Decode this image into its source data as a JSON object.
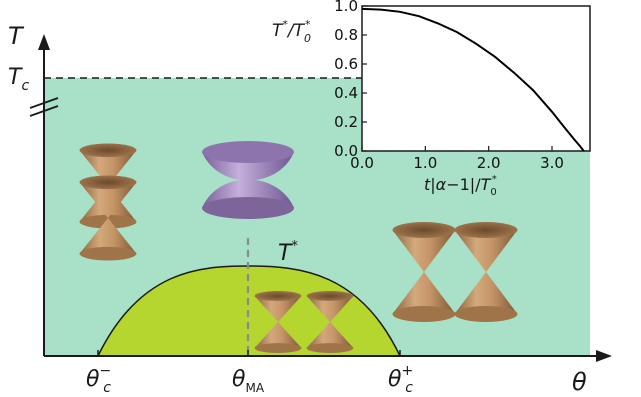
{
  "phase_diagram": {
    "y_axis_label": "T",
    "x_axis_label": "θ",
    "critical_temperature": {
      "base": "T",
      "sub": "c"
    },
    "dome_label": {
      "base": "T",
      "sup": "*"
    },
    "x_ticks": [
      {
        "base": "θ",
        "sub": "c",
        "sup": "−"
      },
      {
        "base": "θ",
        "sub": "MA",
        "sup": ""
      },
      {
        "base": "θ",
        "sub": "c",
        "sup": "+"
      }
    ],
    "colors": {
      "background_region": "#a8e0c8",
      "dome": "#b5d62e",
      "cone": "#b98a5a",
      "gapped_cone": "#a58cbf",
      "axis": "#1a1a1a"
    }
  },
  "inset": {
    "y_label": {
      "n1": "T",
      "sup1": "*",
      "slash": "/",
      "n2": "T",
      "sub2": "0",
      "sup2": "*"
    },
    "x_label": {
      "a": "t",
      "b": "|",
      "c": "α",
      "d": "−1|/",
      "e": "T",
      "sub": "0",
      "sup": "*"
    }
  },
  "chart_data": {
    "type": "line",
    "title": "",
    "xlabel": "t|α−1|/T0*",
    "ylabel": "T*/T0*",
    "xlim": [
      0,
      3.6
    ],
    "ylim": [
      0,
      1.0
    ],
    "x_ticks": [
      "0.0",
      "1.0",
      "2.0",
      "3.0"
    ],
    "y_ticks": [
      "0.0",
      "0.2",
      "0.4",
      "0.6",
      "0.8",
      "1.0"
    ],
    "grid": false,
    "series": [
      {
        "x": [
          0.0,
          0.3,
          0.6,
          0.9,
          1.2,
          1.5,
          1.8,
          2.1,
          2.4,
          2.7,
          3.0,
          3.2,
          3.35,
          3.45,
          3.5
        ],
        "values": [
          0.98,
          0.975,
          0.96,
          0.93,
          0.88,
          0.82,
          0.74,
          0.65,
          0.54,
          0.42,
          0.27,
          0.16,
          0.08,
          0.03,
          0.0
        ]
      }
    ]
  }
}
